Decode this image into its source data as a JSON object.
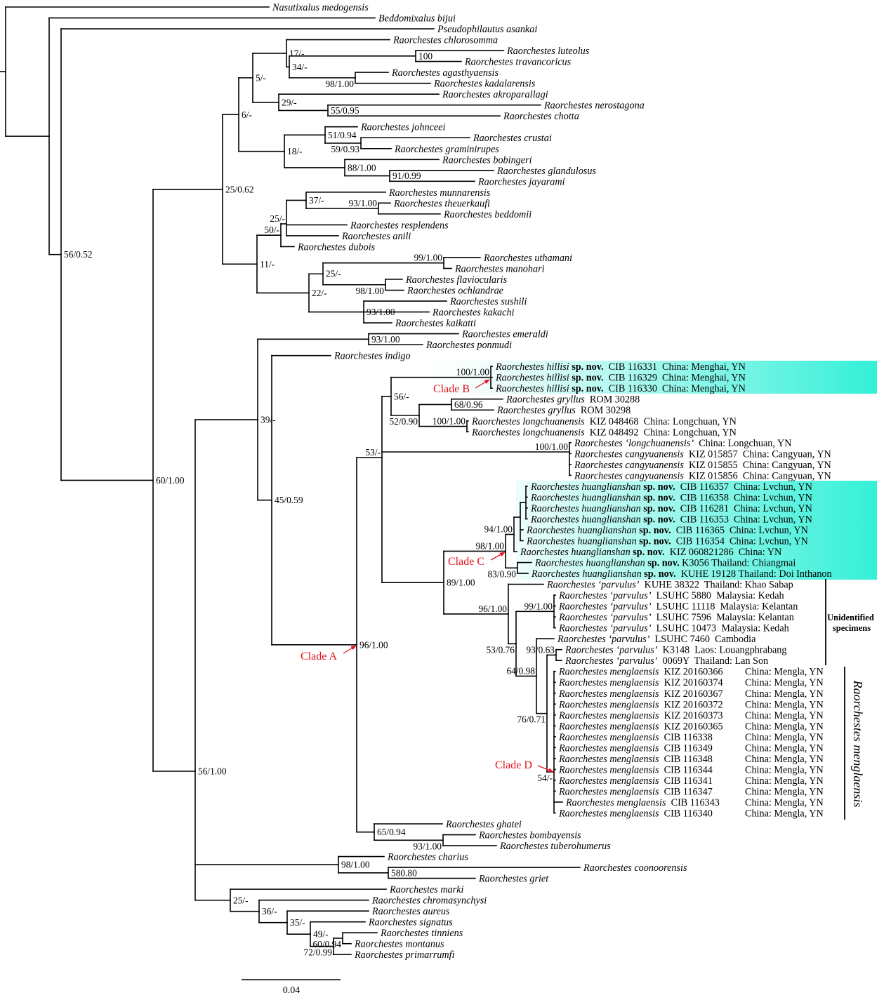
{
  "figure": {
    "scale_bar_label": "0.04",
    "scale_bar_value": 0.04,
    "unidentified_label": [
      "Unidentified",
      "specimens"
    ],
    "menglaensis_label": "Raorchestes menglaensis",
    "clade_labels": {
      "A": "Clade A",
      "B": "Clade B",
      "C": "Clade C",
      "D": "Clade D"
    },
    "colors": {
      "clade_label": "#e3141c",
      "highlight": "#33f0d8",
      "branch": "#000000"
    }
  },
  "supports": [
    "56/0.52",
    "60/1.00",
    "25/0.62",
    "6/-",
    "5/-",
    "17/-",
    "34/-",
    "100",
    "98/1.00",
    "29/-",
    "55/0.95",
    "18/-",
    "51/0.94",
    "59/0.93",
    "88/1.00",
    "91/0.99",
    "11/-",
    "50/-",
    "25/-",
    "37/-",
    "93/1.00",
    "22/-",
    "25/-",
    "99/1.00",
    "98/1.00",
    "93/1.00",
    "56/1.00",
    "98/1.00",
    "580.80",
    "25/-",
    "36/-",
    "35/-",
    "49/-",
    "72/0.99",
    "60/0.94",
    "39/-",
    "93/1.00",
    "45/0.59",
    "96/1.00",
    "65/0.94",
    "93/1.00",
    "53/-",
    "100/1.00",
    "56/-",
    "100/1.00",
    "52/0.90",
    "68/0.96",
    "100/1.00",
    "89/1.00",
    "98/1.00",
    "94/1.00",
    "83/0.90",
    "96/1.00",
    "53/0.76",
    "99/1.00",
    "64/0.98",
    "76/0.71",
    "93/0.63",
    "54/-"
  ],
  "leaves": [
    {
      "name": "Nasutixalus medogensis"
    },
    {
      "name": "Beddomixalus bijui"
    },
    {
      "name": "Pseudophilautus asankai"
    },
    {
      "name": "Raorchestes chlorosomma"
    },
    {
      "name": "Raorchestes luteolus"
    },
    {
      "name": "Raorchestes travancoricus"
    },
    {
      "name": "Raorchestes agasthyaensis"
    },
    {
      "name": "Raorchestes kadalarensis"
    },
    {
      "name": "Raorchestes akroparallagi"
    },
    {
      "name": "Raorchestes nerostagona"
    },
    {
      "name": "Raorchestes chotta"
    },
    {
      "name": "Raorchestes johnceei"
    },
    {
      "name": "Raorchestes crustai"
    },
    {
      "name": "Raorchestes graminirupes"
    },
    {
      "name": "Raorchestes bobingeri"
    },
    {
      "name": "Raorchestes glandulosus"
    },
    {
      "name": "Raorchestes jayarami"
    },
    {
      "name": "Raorchestes munnarensis"
    },
    {
      "name": "Raorchestes theuerkaufi"
    },
    {
      "name": "Raorchestes beddomii"
    },
    {
      "name": "Raorchestes resplendens"
    },
    {
      "name": "Raorchestes anili"
    },
    {
      "name": "Raorchestes dubois"
    },
    {
      "name": "Raorchestes uthamani"
    },
    {
      "name": "Raorchestes manohari"
    },
    {
      "name": "Raorchestes flaviocularis"
    },
    {
      "name": "Raorchestes ochlandrae"
    },
    {
      "name": "Raorchestes sushili"
    },
    {
      "name": "Raorchestes kakachi"
    },
    {
      "name": "Raorchestes kaikatti"
    },
    {
      "name": "Raorchestes emeraldi"
    },
    {
      "name": "Raorchestes ponmudi"
    },
    {
      "name": "Raorchestes indigo"
    },
    {
      "name": "Raorchestes hillisi",
      "sp": "sp. nov.",
      "voucher": "CIB 116331",
      "loc": "China: Menghai, YN"
    },
    {
      "name": "Raorchestes hillisi",
      "sp": "sp. nov.",
      "voucher": "CIB 116329",
      "loc": "China: Menghai, YN"
    },
    {
      "name": "Raorchestes hillisi",
      "sp": "sp. nov.",
      "voucher": "CIB 116330",
      "loc": "China: Menghai, YN"
    },
    {
      "name": "Raorchestes gryllus",
      "voucher": "ROM 30288"
    },
    {
      "name": "Raorchestes gryllus",
      "voucher": "ROM 30298"
    },
    {
      "name": "Raorchestes longchuanensis",
      "voucher": "KIZ 048468",
      "loc": "China: Longchuan, YN"
    },
    {
      "name": "Raorchestes longchuanensis",
      "voucher": "KIZ 048492",
      "loc": "China: Longchuan, YN"
    },
    {
      "name": "Raorchestes ‘longchuanensis’",
      "loc": "China: Longchuan, YN"
    },
    {
      "name": "Raorchestes cangyuanensis",
      "voucher": "KIZ 015857",
      "loc": "China: Cangyuan, YN"
    },
    {
      "name": "Raorchestes cangyuanensis",
      "voucher": "KIZ 015855",
      "loc": "China: Cangyuan, YN"
    },
    {
      "name": "Raorchestes cangyuanensis",
      "voucher": "KIZ 015856",
      "loc": "China: Cangyuan, YN"
    },
    {
      "name": "Raorchestes huanglianshan",
      "sp": "sp. nov.",
      "voucher": "CIB 116357",
      "loc": "China: Lvchun, YN"
    },
    {
      "name": "Raorchestes huanglianshan",
      "sp": "sp. nov.",
      "voucher": "CIB 116358",
      "loc": "China: Lvchun, YN"
    },
    {
      "name": "Raorchestes huanglianshan",
      "sp": "sp. nov.",
      "voucher": "CIB 116281",
      "loc": "China: Lvchun, YN"
    },
    {
      "name": "Raorchestes huanglianshan",
      "sp": "sp. nov.",
      "voucher": "CIB 116353",
      "loc": "China: Lvchun, YN"
    },
    {
      "name": "Raorchestes huanglianshan",
      "sp": "sp. nov.",
      "voucher": "CIB 116365",
      "loc": "China: Lvchun, YN"
    },
    {
      "name": "Raorchestes huanglianshan",
      "sp": "sp. nov.",
      "voucher": "CIB 116354",
      "loc": "China: Lvchun, YN"
    },
    {
      "name": "Raorchestes huanglianshan",
      "sp": "sp. nov.",
      "voucher": "KIZ 060821286",
      "loc": "China: YN"
    },
    {
      "name": "Raorchestes huanglianshan",
      "sp": "sp. nov.",
      "voucher": "K3056",
      "loc": "Thailand: Chiangmai"
    },
    {
      "name": "Raorchestes huanglianshan",
      "sp": "sp. nov.",
      "voucher": "KUHE 19128",
      "loc": "Thailand: Doi Inthanon"
    },
    {
      "name": "Raorchestes ‘parvulus’",
      "voucher": "KUHE 38322",
      "loc": "Thailand: Khao Sabap"
    },
    {
      "name": "Raorchestes ‘parvulus’",
      "voucher": "LSUHC 5880",
      "loc": "Malaysia: Kedah"
    },
    {
      "name": "Raorchestes ‘parvulus’",
      "voucher": "LSUHC 11118",
      "loc": "Malaysia: Kelantan"
    },
    {
      "name": "Raorchestes ‘parvulus’",
      "voucher": "LSUHC 7596",
      "loc": "Malaysia: Kelantan"
    },
    {
      "name": "Raorchestes ‘parvulus’",
      "voucher": "LSUHC 10473",
      "loc": "Malaysia: Kedah"
    },
    {
      "name": "Raorchestes ‘parvulus’",
      "voucher": "LSUHC 7460",
      "loc": "Cambodia"
    },
    {
      "name": "Raorchestes ‘parvulus’",
      "voucher": "K3148",
      "loc": "Laos: Louangphrabang"
    },
    {
      "name": "Raorchestes ‘parvulus’",
      "voucher": "0069Y",
      "loc": "Thailand: Lan Son"
    },
    {
      "name": "Raorchestes menglaensis",
      "voucher": "KIZ 20160366",
      "loc": "China: Mengla, YN"
    },
    {
      "name": "Raorchestes menglaensis",
      "voucher": "KIZ 20160374",
      "loc": "China: Mengla, YN"
    },
    {
      "name": "Raorchestes menglaensis",
      "voucher": "KIZ 20160367",
      "loc": "China: Mengla, YN"
    },
    {
      "name": "Raorchestes menglaensis",
      "voucher": "KIZ 20160372",
      "loc": "China: Mengla, YN"
    },
    {
      "name": "Raorchestes menglaensis",
      "voucher": "KIZ 20160373",
      "loc": "China: Mengla, YN"
    },
    {
      "name": "Raorchestes menglaensis",
      "voucher": "KIZ 20160365",
      "loc": "China: Mengla, YN"
    },
    {
      "name": "Raorchestes menglaensis",
      "voucher": "CIB 116338",
      "loc": "China: Mengla, YN"
    },
    {
      "name": "Raorchestes menglaensis",
      "voucher": "CIB 116349",
      "loc": "China: Mengla, YN"
    },
    {
      "name": "Raorchestes menglaensis",
      "voucher": "CIB 116348",
      "loc": "China: Mengla, YN"
    },
    {
      "name": "Raorchestes menglaensis",
      "voucher": "CIB 116344",
      "loc": "China: Mengla, YN"
    },
    {
      "name": "Raorchestes menglaensis",
      "voucher": "CIB 116341",
      "loc": "China: Mengla, YN"
    },
    {
      "name": "Raorchestes menglaensis",
      "voucher": "CIB 116347",
      "loc": "China: Mengla, YN"
    },
    {
      "name": "Raorchestes menglaensis",
      "voucher": "CIB 116343",
      "loc": "China: Mengla, YN"
    },
    {
      "name": "Raorchestes menglaensis",
      "voucher": "CIB 116340",
      "loc": "China: Mengla, YN"
    },
    {
      "name": "Raorchestes ghatei"
    },
    {
      "name": "Raorchestes bombayensis"
    },
    {
      "name": "Raorchestes tuberohumerus"
    },
    {
      "name": "Raorchestes charius"
    },
    {
      "name": "Raorchestes coonoorensis"
    },
    {
      "name": "Raorchestes griet"
    },
    {
      "name": "Raorchestes marki"
    },
    {
      "name": "Raorchestes chromasynchysi"
    },
    {
      "name": "Raorchestes aureus"
    },
    {
      "name": "Raorchestes signatus"
    },
    {
      "name": "Raorchestes tinniens"
    },
    {
      "name": "Raorchestes montanus"
    },
    {
      "name": "Raorchestes primarrumfi"
    }
  ]
}
